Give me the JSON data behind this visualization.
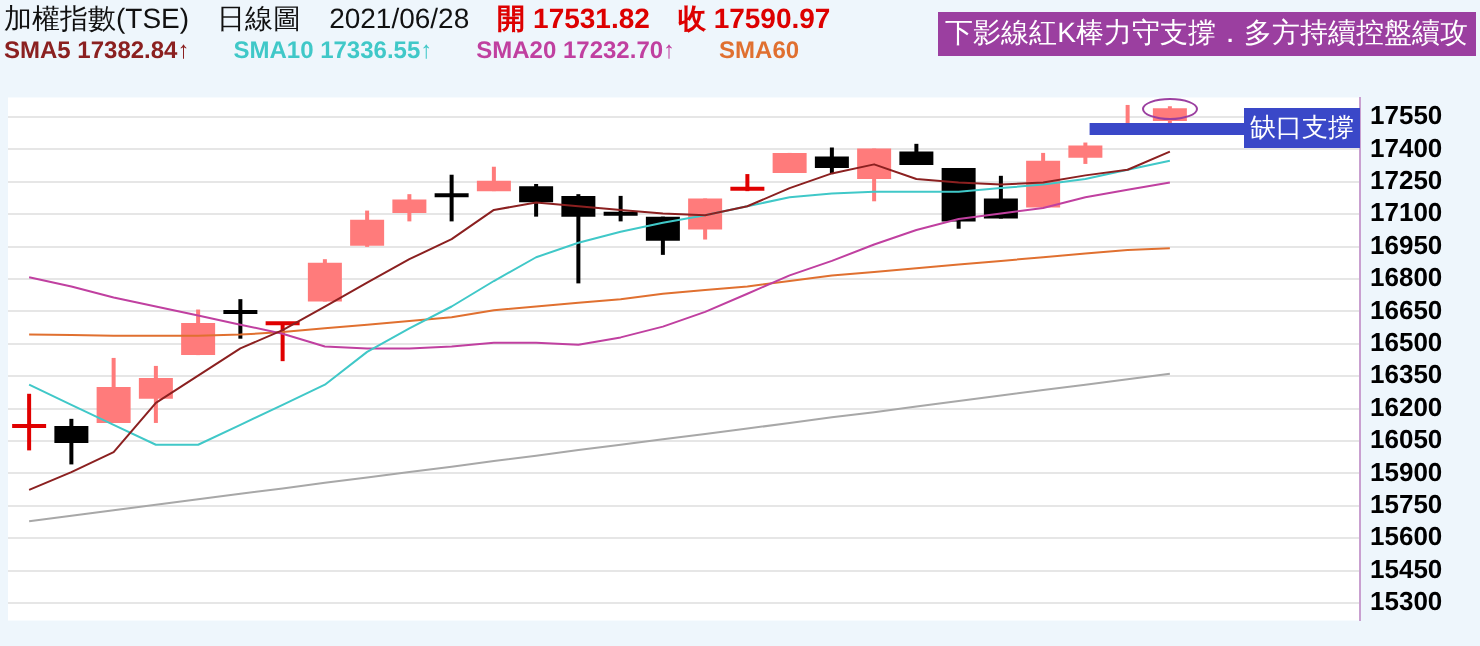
{
  "chart_data": {
    "type": "candlestick",
    "title": "加權指數(TSE)",
    "annotations": [
      "日線圖",
      "2021/06/28",
      "開 17531.82",
      "收 17590.97",
      "下影線紅K棒力守支撐．多方持續控盤續攻"
    ],
    "categories": [
      null,
      null,
      null,
      null,
      null,
      null,
      null,
      null,
      null,
      null,
      null,
      null,
      null,
      null,
      null,
      null,
      null,
      null,
      null,
      null,
      null,
      null,
      null,
      null,
      null,
      null,
      null,
      null,
      null,
      null,
      null,
      null
    ],
    "ohlc": [
      [
        16115,
        16269,
        16007,
        16125
      ],
      [
        16120,
        16153,
        15942,
        16041
      ],
      [
        16134,
        16435,
        16134,
        16300
      ],
      [
        16246,
        16398,
        16134,
        16342
      ],
      [
        16448,
        16659,
        16448,
        16597
      ],
      [
        16652,
        16707,
        16524,
        16642
      ],
      [
        16590,
        16600,
        16420,
        16600
      ],
      [
        16696,
        16892,
        16696,
        16876
      ],
      [
        16954,
        17117,
        16949,
        17075
      ],
      [
        17106,
        17193,
        17067,
        17168
      ],
      [
        17193,
        17283,
        17067,
        17183
      ],
      [
        17207,
        17320,
        17207,
        17255
      ],
      [
        17230,
        17240,
        17089,
        17156
      ],
      [
        17185,
        17193,
        16780,
        17089
      ],
      [
        17105,
        17185,
        17067,
        17100
      ],
      [
        17089,
        17089,
        16912,
        16977
      ],
      [
        17030,
        17173,
        16983,
        17173
      ],
      [
        17215,
        17286,
        17207,
        17221
      ],
      [
        17291,
        17384,
        17291,
        17384
      ],
      [
        17367,
        17409,
        17286,
        17314
      ],
      [
        17263,
        17404,
        17160,
        17404
      ],
      [
        17390,
        17426,
        17328,
        17328
      ],
      [
        17314,
        17314,
        17033,
        17067
      ],
      [
        17173,
        17278,
        17080,
        17080
      ],
      [
        17131,
        17384,
        17131,
        17348
      ],
      [
        17362,
        17432,
        17333,
        17418
      ],
      [
        17494,
        17606,
        17494,
        17516
      ],
      [
        17532,
        17600,
        17494,
        17591
      ],
      null,
      null,
      null,
      null
    ],
    "colors": [
      "#e00000",
      "#000000",
      "#ff7b7b",
      "#ff7b7b",
      "#ff7b7b",
      "#000000",
      "#e00000",
      "#ff7b7b",
      "#ff7b7b",
      "#ff7b7b",
      "#000000",
      "#ff7b7b",
      "#000000",
      "#000000",
      "#000000",
      "#000000",
      "#ff7b7b",
      "#e00000",
      "#ff7b7b",
      "#000000",
      "#ff7b7b",
      "#000000",
      "#000000",
      "#000000",
      "#ff7b7b",
      "#ff7b7b",
      "#ff7b7b",
      "#ff7b7b",
      null,
      null,
      null,
      null
    ],
    "series": [
      {
        "name": "SMA5 17382.84↑",
        "type": "line",
        "color": "#8b2020",
        "values": [
          15824,
          15906,
          15999,
          16227,
          16353,
          16479,
          16564,
          16673,
          16783,
          16892,
          16985,
          17120,
          17154,
          17137,
          17120,
          17103,
          17095,
          17137,
          17221,
          17289,
          17331,
          17263,
          17247,
          17238,
          17247,
          17280,
          17306,
          17390,
          null,
          null,
          null,
          null
        ]
      },
      {
        "name": "SMA10 17336.55↑",
        "type": "line",
        "color": "#40c8c8",
        "values": [
          16311,
          16218,
          16125,
          16033,
          16033,
          16125,
          16218,
          16311,
          16463,
          16572,
          16673,
          16791,
          16901,
          16968,
          17019,
          17061,
          17095,
          17137,
          17179,
          17196,
          17204,
          17204,
          17204,
          17221,
          17238,
          17263,
          17306,
          17348,
          null,
          null,
          null,
          null
        ]
      },
      {
        "name": "SMA20 17232.70↑",
        "type": "line",
        "color": "#c040a0",
        "values": [
          16808,
          16766,
          16715,
          16673,
          16631,
          16589,
          16547,
          16488,
          16479,
          16479,
          16488,
          16505,
          16505,
          16496,
          16530,
          16580,
          16648,
          16732,
          16817,
          16884,
          16960,
          17027,
          17078,
          17103,
          17129,
          17179,
          17213,
          17247,
          null,
          null,
          null,
          null
        ]
      },
      {
        "name": "SMA60",
        "type": "line",
        "color": "#e07030",
        "values": [
          16543,
          16541,
          16538,
          16538,
          16538,
          16543,
          16555,
          16572,
          16589,
          16606,
          16623,
          16656,
          16673,
          16690,
          16707,
          16732,
          16749,
          16766,
          16791,
          16817,
          16833,
          16850,
          16867,
          16884,
          16901,
          16918,
          16934,
          16943,
          null,
          null,
          null,
          null
        ]
      },
      {
        "type": "line",
        "color": "#a8a8a8",
        "values": [
          15679,
          15704,
          15730,
          15755,
          15781,
          15806,
          15831,
          15857,
          15882,
          15907,
          15931,
          15958,
          15982,
          16009,
          16033,
          16058,
          16083,
          16108,
          16134,
          16160,
          16184,
          16210,
          16236,
          16261,
          16286,
          16311,
          16336,
          16362,
          null,
          null,
          null,
          null
        ]
      }
    ],
    "ref_lines": [
      {
        "axis": "y",
        "value": 17495,
        "label": "缺口支撐",
        "color": "#3a48c8"
      }
    ],
    "ylim": [
      15220,
      17640
    ],
    "yticks": [
      15300,
      15450,
      15600,
      15750,
      15900,
      16050,
      16200,
      16350,
      16500,
      16650,
      16800,
      16950,
      17100,
      17250,
      17400,
      17550
    ],
    "grid": "y",
    "legend": "top left",
    "tick_labels": "y"
  }
}
